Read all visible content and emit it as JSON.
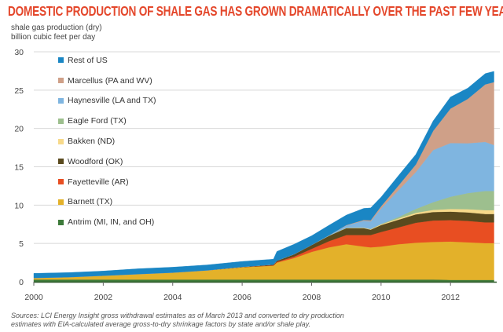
{
  "chart_data": {
    "type": "area",
    "stacked": true,
    "title": "DOMESTIC PRODUCTION OF SHALE GAS HAS GROWN DRAMATICALLY OVER THE PAST FEW YEARS",
    "ylabel_lines": [
      "shale gas production (dry)",
      "billion cubic feet per day"
    ],
    "xlabel": "",
    "xlim": [
      2000,
      2013.33
    ],
    "ylim": [
      0,
      30
    ],
    "xticks": [
      "2000",
      "2002",
      "2004",
      "2006",
      "2008",
      "2010",
      "2012"
    ],
    "yticks": [
      "0",
      "5",
      "10",
      "15",
      "20",
      "25",
      "30"
    ],
    "grid": "horizontal",
    "legend_position": "top-left",
    "x": [
      2000,
      2001,
      2002,
      2003,
      2004,
      2005,
      2006,
      2006.9,
      2007,
      2007.5,
      2008,
      2008.5,
      2009,
      2009.5,
      2009.7,
      2010,
      2010.5,
      2011,
      2011.5,
      2012,
      2012.5,
      2013,
      2013.25
    ],
    "series": [
      {
        "name": "Antrim (MI, IN, and OH)",
        "color": "#3d7a3a",
        "values": [
          0.3,
          0.3,
          0.3,
          0.3,
          0.3,
          0.3,
          0.3,
          0.3,
          0.3,
          0.3,
          0.3,
          0.3,
          0.3,
          0.3,
          0.3,
          0.3,
          0.3,
          0.3,
          0.3,
          0.25,
          0.25,
          0.25,
          0.25
        ]
      },
      {
        "name": "Barnett (TX)",
        "color": "#e3b12a",
        "values": [
          0.2,
          0.3,
          0.5,
          0.7,
          0.9,
          1.2,
          1.6,
          1.8,
          2.2,
          2.8,
          3.6,
          4.2,
          4.6,
          4.3,
          4.2,
          4.3,
          4.6,
          4.8,
          4.9,
          5.0,
          4.9,
          4.8,
          4.8
        ]
      },
      {
        "name": "Fayetteville (AR)",
        "color": "#e84e22",
        "values": [
          0,
          0,
          0,
          0,
          0,
          0,
          0,
          0.05,
          0.1,
          0.2,
          0.4,
          0.8,
          1.2,
          1.5,
          1.6,
          1.9,
          2.2,
          2.6,
          2.8,
          2.8,
          2.8,
          2.7,
          2.7
        ]
      },
      {
        "name": "Woodford (OK)",
        "color": "#5a4a1e",
        "values": [
          0,
          0,
          0,
          0,
          0,
          0,
          0.05,
          0.1,
          0.15,
          0.3,
          0.5,
          0.7,
          0.9,
          0.9,
          0.7,
          0.9,
          1.0,
          1.1,
          1.1,
          1.1,
          1.1,
          1.1,
          1.1
        ]
      },
      {
        "name": "Bakken (ND)",
        "color": "#f7d98a",
        "values": [
          0,
          0,
          0,
          0,
          0,
          0,
          0,
          0,
          0,
          0,
          0,
          0.02,
          0.05,
          0.07,
          0.08,
          0.1,
          0.15,
          0.2,
          0.28,
          0.35,
          0.42,
          0.5,
          0.5
        ]
      },
      {
        "name": "Eagle Ford (TX)",
        "color": "#9dbf8e",
        "values": [
          0,
          0,
          0,
          0,
          0,
          0,
          0,
          0,
          0,
          0,
          0,
          0,
          0,
          0,
          0,
          0.05,
          0.2,
          0.5,
          1.0,
          1.6,
          2.1,
          2.5,
          2.5
        ]
      },
      {
        "name": "Haynesville (LA and TX)",
        "color": "#7fb5e0",
        "values": [
          0,
          0,
          0,
          0,
          0,
          0,
          0,
          0,
          0,
          0,
          0,
          0.05,
          0.3,
          0.9,
          1.0,
          2.0,
          3.5,
          4.8,
          6.8,
          7.0,
          6.5,
          6.4,
          6.0
        ]
      },
      {
        "name": "Marcellus (PA and WV)",
        "color": "#cfa088",
        "values": [
          0,
          0,
          0,
          0,
          0,
          0,
          0,
          0,
          0,
          0,
          0,
          0,
          0.05,
          0.1,
          0.15,
          0.3,
          0.6,
          1.0,
          2.5,
          4.5,
          5.8,
          7.5,
          8.2
        ]
      },
      {
        "name": "Rest of US",
        "color": "#1a86c4",
        "values": [
          0.6,
          0.6,
          0.6,
          0.7,
          0.7,
          0.7,
          0.7,
          0.7,
          1.2,
          1.3,
          1.2,
          1.3,
          1.3,
          1.5,
          1.6,
          1.2,
          1.3,
          1.3,
          1.3,
          1.5,
          1.4,
          1.4,
          1.4
        ]
      }
    ],
    "sources": [
      "Sources:  LCI Energy Insight gross withdrawal estimates as of March 2013 and converted to dry production",
      "estimates with EIA-calculated average gross-to-dry shrinkage factors by state and/or shale play."
    ]
  },
  "colors": {
    "title": "#e4472b",
    "grid": "#d8d8d8"
  }
}
